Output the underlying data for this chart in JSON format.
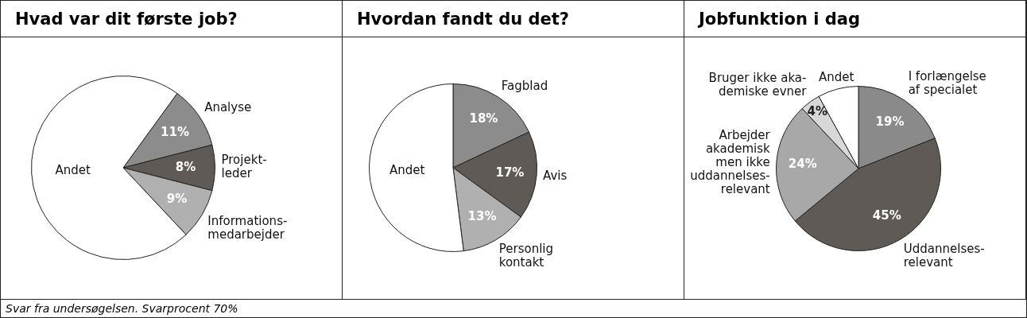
{
  "chart_data": [
    {
      "type": "pie",
      "title": "Hvad var dit første job?",
      "categories": [
        "Analyse",
        "Projekt-\nleder",
        "Informations-\nmedarbejder",
        "Andet"
      ],
      "values": [
        11,
        8,
        9,
        72
      ],
      "value_labels": [
        "11%",
        "8%",
        "9%",
        null
      ],
      "colors": [
        "#8c8c8c",
        "#5f5a55",
        "#b0b0b0",
        "#ffffff"
      ],
      "legend": false,
      "annotations": [
        "Svar fra undersøgelsen. Svarprocent 70%"
      ]
    },
    {
      "type": "pie",
      "title": "Hvordan fandt du det?",
      "categories": [
        "Fagblad",
        "Avis",
        "Personlig\nkontakt",
        "Andet"
      ],
      "values": [
        18,
        17,
        13,
        52
      ],
      "value_labels": [
        "18%",
        "17%",
        "13%",
        null
      ],
      "colors": [
        "#8c8c8c",
        "#5f5a55",
        "#b0b0b0",
        "#ffffff"
      ],
      "legend": false
    },
    {
      "type": "pie",
      "title": "Jobfunktion i dag",
      "categories": [
        "I forlængelse\naf specialet",
        "Uddannelses-\nrelevant",
        "Arbejder\nakademisk\nmen ikke\nuddannelses-\nrelevant",
        "Bruger ikke aka-\ndemiske evner",
        "Andet"
      ],
      "values": [
        19,
        45,
        24,
        4,
        8
      ],
      "value_labels": [
        "19%",
        "45%",
        "24%",
        "4%",
        null
      ],
      "colors": [
        "#8a8a8a",
        "#5f5a55",
        "#a8a8a8",
        "#d8d8d8",
        "#ffffff"
      ],
      "legend": false
    }
  ]
}
